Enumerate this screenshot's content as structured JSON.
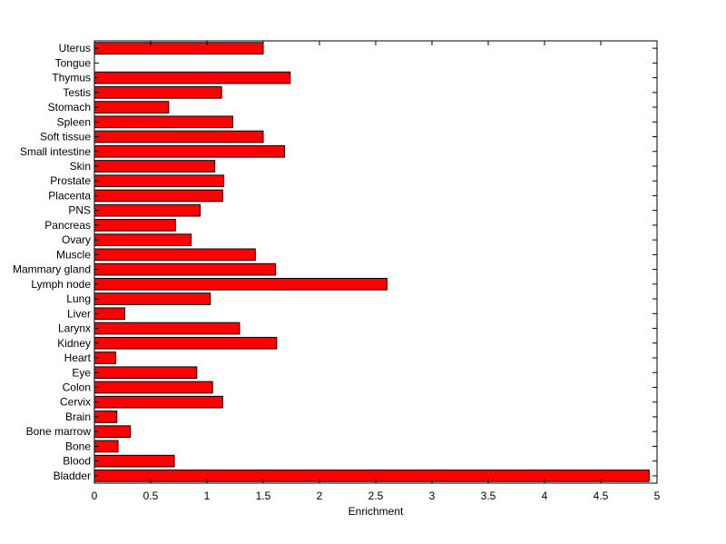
{
  "chart_data": {
    "type": "bar",
    "orientation": "horizontal",
    "title": "",
    "xlabel": "Enrichment",
    "ylabel": "",
    "xlim": [
      0,
      5
    ],
    "xticks": [
      "0",
      "0.5",
      "1",
      "1.5",
      "2",
      "2.5",
      "3",
      "3.5",
      "4",
      "4.5",
      "5"
    ],
    "grid": false,
    "bar_color": "#ff0000",
    "edge_color": "#000000",
    "categories": [
      "Bladder",
      "Blood",
      "Bone",
      "Bone marrow",
      "Brain",
      "Cervix",
      "Colon",
      "Eye",
      "Heart",
      "Kidney",
      "Larynx",
      "Liver",
      "Lung",
      "Lymph node",
      "Mammary gland",
      "Muscle",
      "Ovary",
      "Pancreas",
      "PNS",
      "Placenta",
      "Prostate",
      "Skin",
      "Small intestine",
      "Soft tissue",
      "Spleen",
      "Stomach",
      "Testis",
      "Thymus",
      "Tongue",
      "Uterus"
    ],
    "values": [
      4.93,
      0.71,
      0.21,
      0.32,
      0.2,
      1.14,
      1.05,
      0.91,
      0.19,
      1.62,
      1.29,
      0.27,
      1.03,
      2.6,
      1.61,
      1.43,
      0.86,
      0.72,
      0.94,
      1.14,
      1.15,
      1.07,
      1.69,
      1.5,
      1.23,
      0.66,
      1.13,
      1.74,
      0.0,
      1.5
    ]
  }
}
